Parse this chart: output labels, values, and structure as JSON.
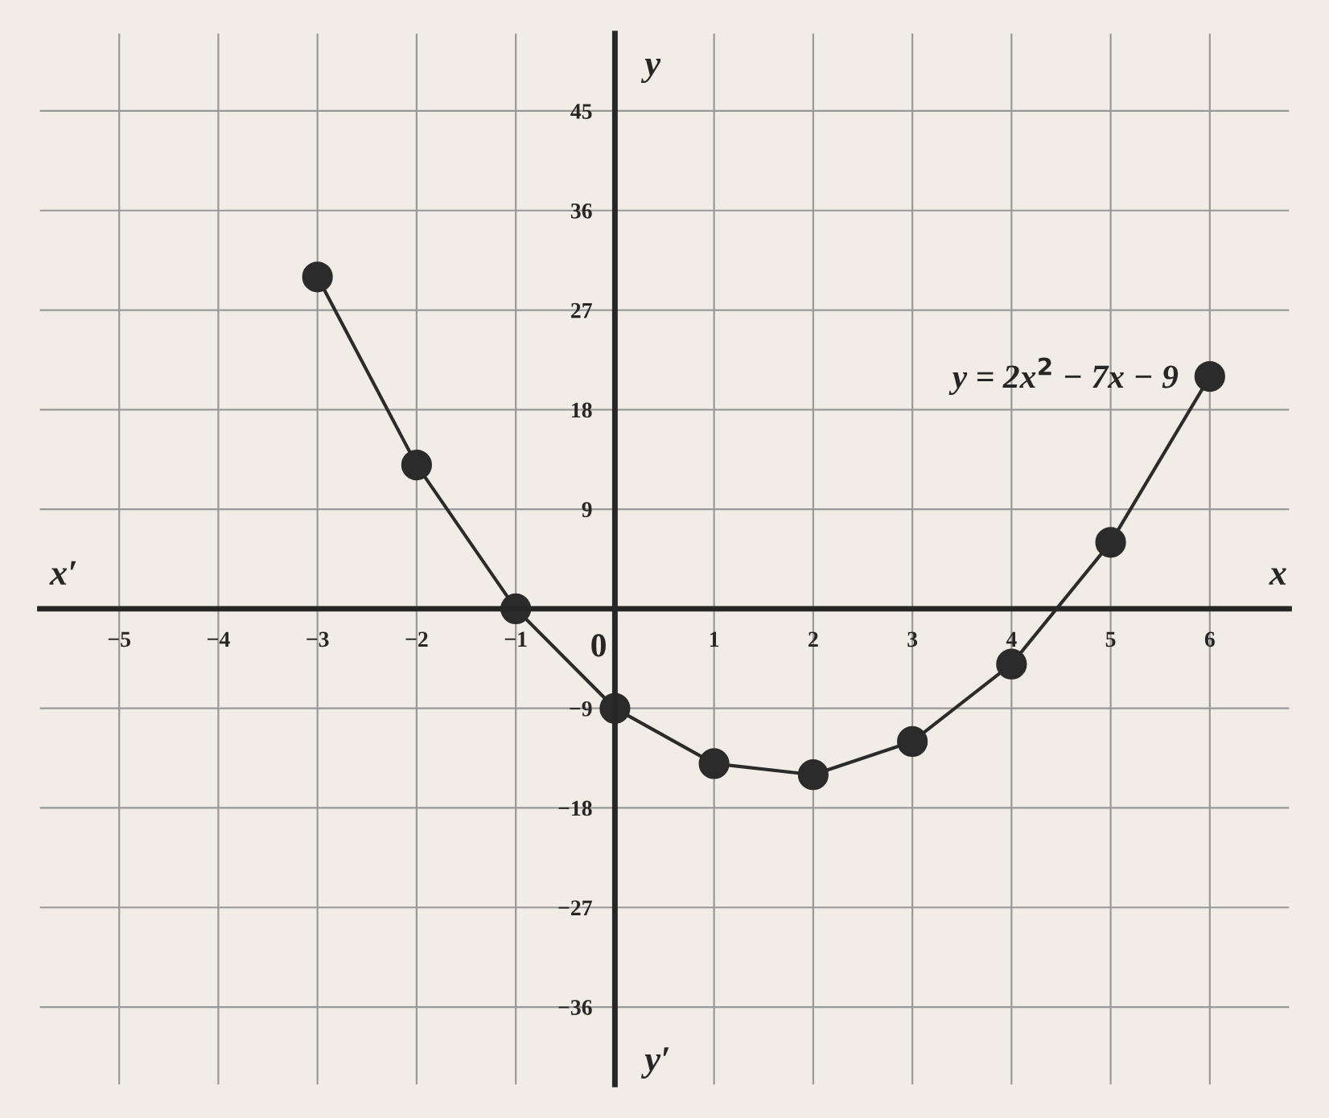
{
  "chart_data": {
    "type": "line",
    "x": [
      -3,
      -2,
      -1,
      0,
      1,
      2,
      3,
      4,
      5,
      6
    ],
    "series": [
      {
        "color": "#2b2b2b",
        "values": [
          30,
          13,
          0,
          -9,
          -14,
          -15,
          -12,
          -5,
          6,
          21
        ]
      }
    ],
    "marker": "circle",
    "line_style": "solid",
    "grid": true,
    "xlabel": "x",
    "ylabel": "y",
    "xlim": [
      -5.8,
      6.8
    ],
    "ylim": [
      -43,
      52
    ],
    "xticks": [
      -5,
      -4,
      -3,
      -2,
      -1,
      1,
      2,
      3,
      4,
      5,
      6
    ],
    "yticks": [
      -36,
      -27,
      -18,
      -9,
      9,
      18,
      27,
      36,
      45
    ],
    "annotations": [
      {
        "text": "y = 2x$^{2}$ − 7x − 9",
        "x": 6,
        "y": 21
      },
      "0",
      "x′",
      "y′"
    ]
  }
}
